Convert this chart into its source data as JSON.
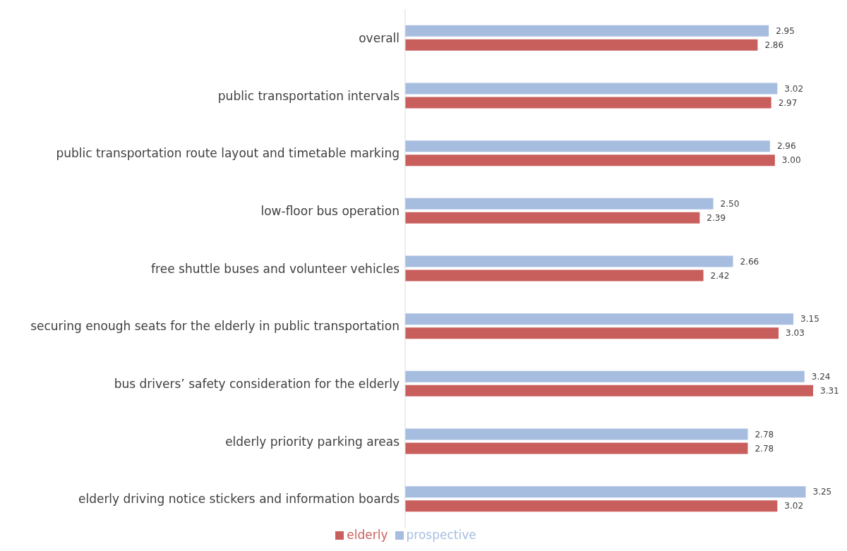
{
  "chart_data": {
    "type": "bar",
    "orientation": "horizontal",
    "relative": false,
    "categories": [
      "overall",
      "public transportation intervals",
      "public transportation route layout and timetable marking",
      "low-floor bus operation",
      "free shuttle buses and volunteer vehicles",
      "securing enough seats for the elderly in public transportation",
      "bus drivers’ safety consideration for the elderly",
      "elderly priority parking areas",
      "elderly driving notice stickers and information boards"
    ],
    "series": [
      {
        "name": "prospective",
        "color": "#a7bde0",
        "values": [
          2.95,
          3.02,
          2.96,
          2.5,
          2.66,
          3.15,
          3.24,
          2.78,
          3.25
        ],
        "value_labels": [
          "2.95",
          "3.02",
          "2.96",
          "2.50",
          "2.66",
          "3.15",
          "3.24",
          "2.78",
          "3.25"
        ]
      },
      {
        "name": "elderly",
        "color": "#c95f5c",
        "values": [
          2.86,
          2.97,
          3.0,
          2.39,
          2.42,
          3.03,
          3.31,
          2.78,
          3.02
        ],
        "value_labels": [
          "2.86",
          "2.97",
          "3.00",
          "2.39",
          "2.42",
          "3.03",
          "3.31",
          "2.78",
          "3.02"
        ]
      }
    ],
    "legend": "bottom",
    "grid": false
  }
}
